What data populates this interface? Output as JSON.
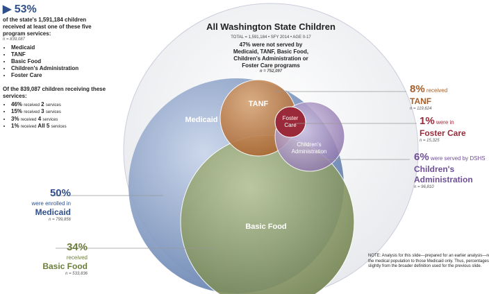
{
  "summary": {
    "percent": "53%",
    "text": "of the state's 1,591,184 children received at least one of these five program services:",
    "n": "n = 839,087",
    "programs": [
      "Medicaid",
      "TANF",
      "Basic Food",
      "Children's Administration",
      "Foster Care"
    ],
    "breakdown_intro": "Of the 839,087 children receiving these services:",
    "breakdown": [
      {
        "pct": "46%",
        "label": "received",
        "count": "2",
        "unit": "services"
      },
      {
        "pct": "15%",
        "label": "received",
        "count": "3",
        "unit": "services"
      },
      {
        "pct": "3%",
        "label": "received",
        "count": "4",
        "unit": "services"
      },
      {
        "pct": "1%",
        "label": "received",
        "count": "All 5",
        "unit": "services"
      }
    ]
  },
  "title": "All Washington State Children",
  "subtitle": "TOTAL = 1,591,184 • SFY 2014 • AGE 0-17",
  "unserved": {
    "text": "47% were not served by Medicaid, TANF, Basic Food, Children's Administration or Foster Care programs",
    "n": "n = 752,097"
  },
  "circles": {
    "medicaid": "Medicaid",
    "tanf": "TANF",
    "foster": "Foster Care",
    "ca": "Children's Administration",
    "food": "Basic Food"
  },
  "callouts": {
    "medicaid": {
      "pct": "50%",
      "pre": "were enrolled in",
      "name": "Medicaid",
      "n": "n = 799,856"
    },
    "food": {
      "pct": "34%",
      "pre": "received",
      "name": "Basic Food",
      "n": "n = 533,836"
    },
    "tanf": {
      "pct": "8%",
      "pre": "received",
      "name": "TANF",
      "n": "n = 119,624"
    },
    "foster": {
      "pct": "1%",
      "pre": "were in",
      "name": "Foster Care",
      "n": "n = 15,325"
    },
    "ca": {
      "pct": "6%",
      "pre": "were served by DSHS",
      "name": "Children's Administration",
      "n": "n = 96,810"
    }
  },
  "note": "NOTE: Analysis for this slide—prepared for an earlier analysis—restrict the medical population to those Medicaid only. Thus, percentages differ slightly from the broader definition used for the previous slide."
}
